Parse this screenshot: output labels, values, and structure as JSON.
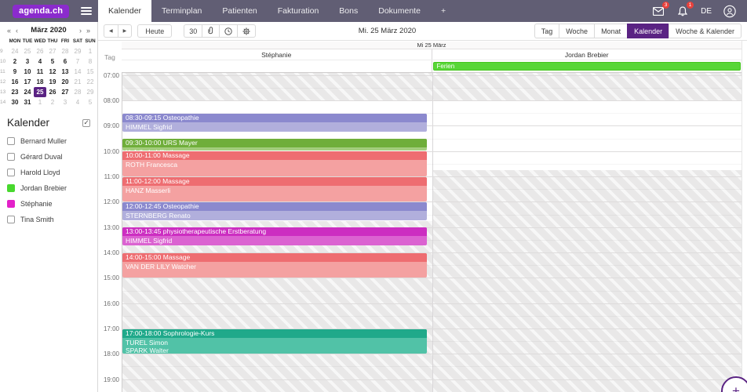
{
  "app": {
    "logo": "agenda.ch",
    "nav_tabs": [
      {
        "label": "Kalender",
        "active": true
      },
      {
        "label": "Terminplan",
        "active": false
      },
      {
        "label": "Patienten",
        "active": false
      },
      {
        "label": "Fakturation",
        "active": false
      },
      {
        "label": "Bons",
        "active": false
      },
      {
        "label": "Dokumente",
        "active": false
      },
      {
        "label": "+",
        "active": false
      }
    ],
    "mail_badge": "3",
    "notifications_badge": "1",
    "language": "DE"
  },
  "sidebar": {
    "mini_calendar": {
      "title": "März 2020",
      "arrows": {
        "prev_year": "«",
        "prev": "‹",
        "next": "›",
        "next_year": "»"
      },
      "day_names": [
        "MON",
        "TUE",
        "WED",
        "THU",
        "FRI",
        "SAT",
        "SUN"
      ],
      "weeks": [
        {
          "num": "9",
          "days": [
            {
              "d": "24",
              "t": "out"
            },
            {
              "d": "25",
              "t": "out"
            },
            {
              "d": "26",
              "t": "out"
            },
            {
              "d": "27",
              "t": "out"
            },
            {
              "d": "28",
              "t": "out"
            },
            {
              "d": "29",
              "t": "out"
            },
            {
              "d": "1",
              "t": "out"
            }
          ]
        },
        {
          "num": "10",
          "days": [
            {
              "d": "2",
              "t": "wd"
            },
            {
              "d": "3",
              "t": "wd"
            },
            {
              "d": "4",
              "t": "wd"
            },
            {
              "d": "5",
              "t": "wd"
            },
            {
              "d": "6",
              "t": "wd"
            },
            {
              "d": "7",
              "t": "out"
            },
            {
              "d": "8",
              "t": "out"
            }
          ]
        },
        {
          "num": "11",
          "days": [
            {
              "d": "9",
              "t": "wd"
            },
            {
              "d": "10",
              "t": "wd"
            },
            {
              "d": "11",
              "t": "wd"
            },
            {
              "d": "12",
              "t": "wd"
            },
            {
              "d": "13",
              "t": "wd"
            },
            {
              "d": "14",
              "t": "out"
            },
            {
              "d": "15",
              "t": "out"
            }
          ]
        },
        {
          "num": "12",
          "days": [
            {
              "d": "16",
              "t": "wd"
            },
            {
              "d": "17",
              "t": "wd"
            },
            {
              "d": "18",
              "t": "wd"
            },
            {
              "d": "19",
              "t": "wd"
            },
            {
              "d": "20",
              "t": "wd"
            },
            {
              "d": "21",
              "t": "out"
            },
            {
              "d": "22",
              "t": "out"
            }
          ]
        },
        {
          "num": "13",
          "days": [
            {
              "d": "23",
              "t": "wd"
            },
            {
              "d": "24",
              "t": "wd"
            },
            {
              "d": "25",
              "t": "sel"
            },
            {
              "d": "26",
              "t": "wd"
            },
            {
              "d": "27",
              "t": "wd"
            },
            {
              "d": "28",
              "t": "out"
            },
            {
              "d": "29",
              "t": "out"
            }
          ]
        },
        {
          "num": "14",
          "days": [
            {
              "d": "30",
              "t": "wd"
            },
            {
              "d": "31",
              "t": "wd"
            },
            {
              "d": "1",
              "t": "out"
            },
            {
              "d": "2",
              "t": "out"
            },
            {
              "d": "3",
              "t": "out"
            },
            {
              "d": "4",
              "t": "out"
            },
            {
              "d": "5",
              "t": "out"
            }
          ]
        }
      ]
    },
    "calendars": {
      "heading": "Kalender",
      "all_checked": true,
      "items": [
        {
          "name": "Bernard Muller",
          "checked": false,
          "color": null
        },
        {
          "name": "Gérard Duval",
          "checked": false,
          "color": null
        },
        {
          "name": "Harold Lloyd",
          "checked": false,
          "color": null
        },
        {
          "name": "Jordan Brebier",
          "checked": true,
          "color": "#48d82e"
        },
        {
          "name": "Stéphanie",
          "checked": true,
          "color": "#e321c9"
        },
        {
          "name": "Tina Smith",
          "checked": false,
          "color": null
        }
      ]
    }
  },
  "toolbar": {
    "today_label": "Heute",
    "day_number": "30",
    "date_title": "Mi. 25 März 2020",
    "views": [
      {
        "label": "Tag",
        "active": false
      },
      {
        "label": "Woche",
        "active": false
      },
      {
        "label": "Monat",
        "active": false
      },
      {
        "label": "Kalender",
        "active": true
      },
      {
        "label": "Woche & Kalender",
        "active": false
      }
    ]
  },
  "calendar": {
    "day_bar": "Mi 25 März",
    "tag_label": "Tag",
    "hours": [
      "07:00",
      "08:00",
      "09:00",
      "10:00",
      "11:00",
      "12:00",
      "13:00",
      "14:00",
      "15:00",
      "16:00",
      "17:00",
      "18:00",
      "19:00"
    ],
    "columns": [
      {
        "title": "Stéphanie",
        "available": [
          [
            8,
            12.75
          ]
        ],
        "allday": null,
        "events": [
          {
            "time": "08:30-09:15",
            "title": "Osteopathie",
            "attendees": [
              "HIMMEL Sigfrid"
            ],
            "start": 8.5,
            "end": 9.25,
            "color_header": "#8b89ce",
            "color_body": "#b1afdc"
          },
          {
            "time": "09:30-10:00",
            "title": "URS Mayer",
            "attendees": [
              "Unfallrehabilitation"
            ],
            "start": 9.5,
            "end": 10,
            "color_header": "#6fae3a",
            "color_body": "#a3cd7d"
          },
          {
            "time": "10:00-11:00",
            "title": "Massage",
            "attendees": [
              "ROTH Francesca"
            ],
            "start": 10,
            "end": 11,
            "color_header": "#ee6d71",
            "color_body": "#f4a1a1"
          },
          {
            "time": "11:00-12:00",
            "title": "Massage",
            "attendees": [
              "HANZ Masserli"
            ],
            "start": 11,
            "end": 12,
            "color_header": "#ee6d71",
            "color_body": "#f4a1a1"
          },
          {
            "time": "12:00-12:45",
            "title": "Osteopathie",
            "attendees": [
              "STERNBERG Renato"
            ],
            "start": 12,
            "end": 12.75,
            "color_header": "#8b89ce",
            "color_body": "#b1afdc"
          },
          {
            "time": "13:00-13:45",
            "title": "physiotherapeutische Erstberatung",
            "attendees": [
              "HIMMEL Sigfrid"
            ],
            "start": 13,
            "end": 13.75,
            "color_header": "#cc2ec1",
            "color_body": "#db63d1"
          },
          {
            "time": "14:00-15:00",
            "title": "Massage",
            "attendees": [
              "VAN DER LILY Watcher"
            ],
            "start": 14,
            "end": 15,
            "color_header": "#ee6d71",
            "color_body": "#f4a1a1"
          },
          {
            "time": "17:00-18:00",
            "title": "Sophrologie-Kurs",
            "attendees": [
              "TUREL Simon",
              "SPARK Walter"
            ],
            "start": 17,
            "end": 18,
            "color_header": "#1fa98a",
            "color_body": "#51c2a7"
          }
        ]
      },
      {
        "title": "Jordan Brebier",
        "available": [
          [
            8,
            10.75
          ]
        ],
        "allday": {
          "label": "Ferien",
          "fill": "#58d637",
          "border": "#46c521"
        },
        "events": []
      }
    ]
  },
  "fab": {
    "label": "+"
  },
  "colors": {
    "accent": "#5a2383",
    "topbar": "#615e74",
    "logo_badge": "#8b2bcd",
    "alert_badge": "#e8413c"
  }
}
